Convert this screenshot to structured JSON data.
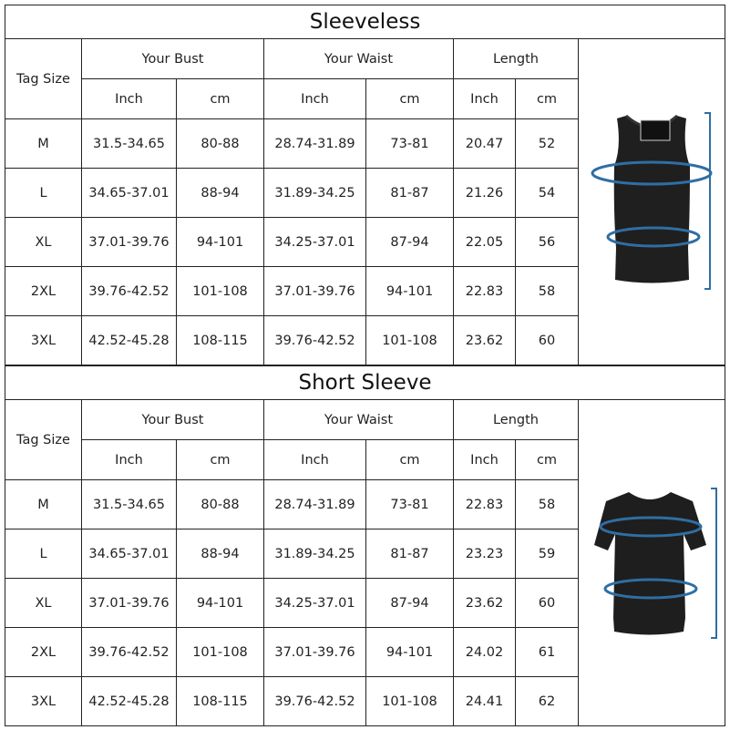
{
  "tables": [
    {
      "title": "Sleeveless",
      "headers": {
        "tag_size": "Tag Size",
        "bust": "Your Bust",
        "waist": "Your Waist",
        "length": "Length",
        "inch": "Inch",
        "cm": "cm"
      },
      "rows": [
        [
          "M",
          "31.5-34.65",
          "80-88",
          "28.74-31.89",
          "73-81",
          "20.47",
          "52"
        ],
        [
          "L",
          "34.65-37.01",
          "88-94",
          "31.89-34.25",
          "81-87",
          "21.26",
          "54"
        ],
        [
          "XL",
          "37.01-39.76",
          "94-101",
          "34.25-37.01",
          "87-94",
          "22.05",
          "56"
        ],
        [
          "2XL",
          "39.76-42.52",
          "101-108",
          "37.01-39.76",
          "94-101",
          "22.83",
          "58"
        ],
        [
          "3XL",
          "42.52-45.28",
          "108-115",
          "39.76-42.52",
          "101-108",
          "23.62",
          "60"
        ]
      ],
      "image_icon": "sleeveless-tank-top-icon"
    },
    {
      "title": "Short Sleeve",
      "headers": {
        "tag_size": "Tag Size",
        "bust": "Your Bust",
        "waist": "Your Waist",
        "length": "Length",
        "inch": "Inch",
        "cm": "cm"
      },
      "rows": [
        [
          "M",
          "31.5-34.65",
          "80-88",
          "28.74-31.89",
          "73-81",
          "22.83",
          "58"
        ],
        [
          "L",
          "34.65-37.01",
          "88-94",
          "31.89-34.25",
          "81-87",
          "23.23",
          "59"
        ],
        [
          "XL",
          "37.01-39.76",
          "94-101",
          "34.25-37.01",
          "87-94",
          "23.62",
          "60"
        ],
        [
          "2XL",
          "39.76-42.52",
          "101-108",
          "37.01-39.76",
          "94-101",
          "24.02",
          "61"
        ],
        [
          "3XL",
          "42.52-45.28",
          "108-115",
          "39.76-42.52",
          "101-108",
          "24.41",
          "62"
        ]
      ],
      "image_icon": "short-sleeve-shirt-icon"
    }
  ],
  "colors": {
    "measure_line": "#2f6ea3",
    "garment": "#1e1e1e",
    "border": "#222222"
  }
}
